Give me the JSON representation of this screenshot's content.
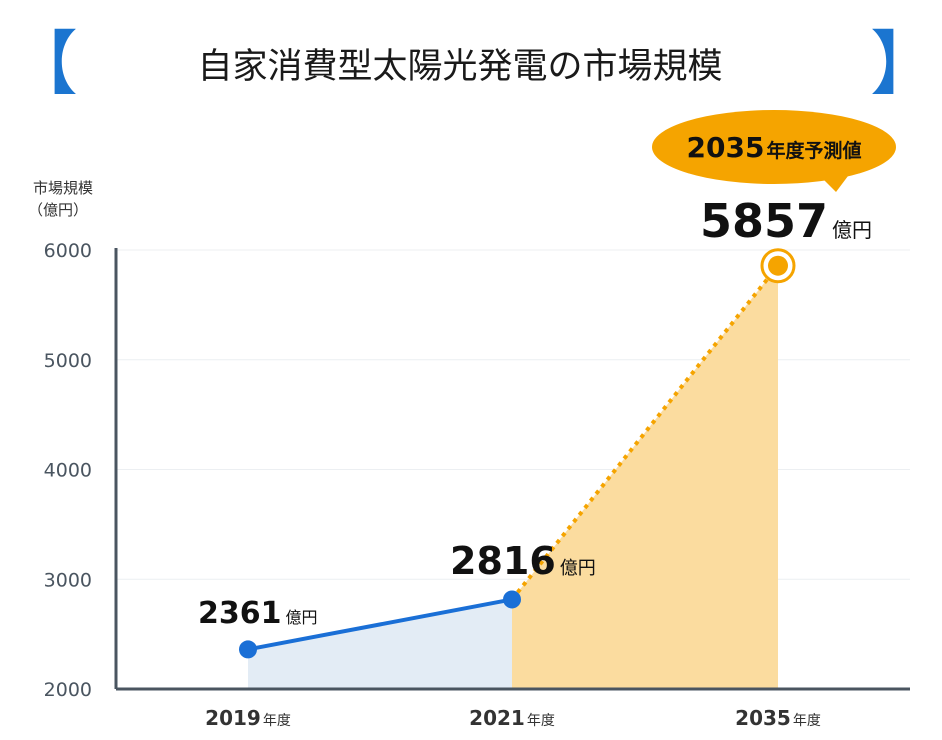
{
  "colors": {
    "accent_blue": "#1a6fd6",
    "bracket_blue": "#1b75d0",
    "forecast_orange": "#f5a400",
    "actual_fill": "#e3ecf5",
    "forecast_fill": "#fbdc9f",
    "axis": "#4a5560",
    "grid": "#eceff2"
  },
  "header": {
    "title": "自家消費型太陽光発電の市場規模",
    "bracket_left": "【",
    "bracket_right": "】"
  },
  "callout": {
    "year": "2035",
    "label": "年度予測値"
  },
  "chart_data": {
    "type": "line",
    "title": "自家消費型太陽光発電の市場規模",
    "ylabel_line1": "市場規模",
    "ylabel_line2": "（億円）",
    "ylim": [
      2000,
      6000
    ],
    "yticks": [
      "6000",
      "5000",
      "4000",
      "3000",
      "2000"
    ],
    "grid": true,
    "x": [
      {
        "year": "2019",
        "suffix": "年度"
      },
      {
        "year": "2021",
        "suffix": "年度"
      },
      {
        "year": "2035",
        "suffix": "年度"
      }
    ],
    "values": [
      2361,
      2816,
      5857
    ],
    "value_labels": [
      "2361",
      "2816",
      "5857"
    ],
    "unit": "億円",
    "segments": [
      {
        "from": 0,
        "to": 1,
        "style": "solid",
        "kind": "actual"
      },
      {
        "from": 1,
        "to": 2,
        "style": "dotted",
        "kind": "forecast"
      }
    ]
  }
}
